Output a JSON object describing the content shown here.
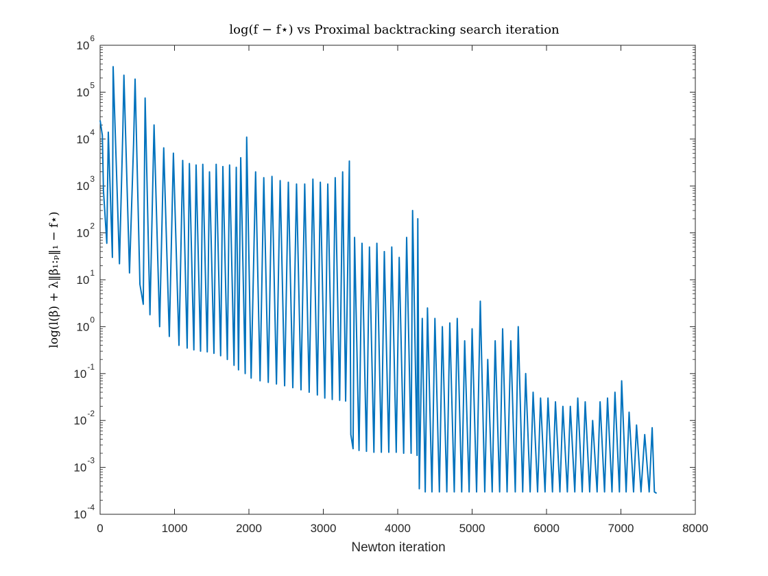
{
  "chart_data": {
    "type": "line",
    "title": "log(f − f⋆) vs Proximal backtracking search iteration",
    "xlabel": "Newton iteration",
    "ylabel": "log(l(β) + λ‖β₁:ₚ‖₁ − f⋆)",
    "xlim": [
      0,
      8000
    ],
    "ylim": [
      0.0001,
      1000000
    ],
    "yscale": "log",
    "grid": false,
    "line_color": "#0072BD",
    "x_ticks": [
      "0",
      "1000",
      "2000",
      "3000",
      "4000",
      "5000",
      "6000",
      "7000",
      "8000"
    ],
    "y_ticks": [
      {
        "base": "10",
        "exp": "-4"
      },
      {
        "base": "10",
        "exp": "-3"
      },
      {
        "base": "10",
        "exp": "-2"
      },
      {
        "base": "10",
        "exp": "-1"
      },
      {
        "base": "10",
        "exp": "0"
      },
      {
        "base": "10",
        "exp": "1"
      },
      {
        "base": "10",
        "exp": "2"
      },
      {
        "base": "10",
        "exp": "3"
      },
      {
        "base": "10",
        "exp": "4"
      },
      {
        "base": "10",
        "exp": "5"
      },
      {
        "base": "10",
        "exp": "6"
      }
    ],
    "series": [
      {
        "points": [
          [
            0,
            25000
          ],
          [
            30,
            12000
          ],
          [
            45,
            800
          ],
          [
            90,
            60
          ],
          [
            110,
            14000
          ],
          [
            165,
            30
          ],
          [
            175,
            350000
          ],
          [
            260,
            22
          ],
          [
            305,
            14000
          ],
          [
            320,
            230000
          ],
          [
            395,
            14
          ],
          [
            450,
            8000
          ],
          [
            470,
            190000
          ],
          [
            535,
            8
          ],
          [
            580,
            3
          ],
          [
            605,
            75000
          ],
          [
            670,
            1.8
          ],
          [
            725,
            20000
          ],
          [
            800,
            1.0
          ],
          [
            855,
            6500
          ],
          [
            930,
            0.62
          ],
          [
            985,
            5000
          ],
          [
            1060,
            0.4
          ],
          [
            1110,
            3500
          ],
          [
            1170,
            0.35
          ],
          [
            1200,
            3000
          ],
          [
            1260,
            0.32
          ],
          [
            1290,
            2800
          ],
          [
            1350,
            0.3
          ],
          [
            1380,
            2900
          ],
          [
            1440,
            0.29
          ],
          [
            1470,
            2000
          ],
          [
            1530,
            0.27
          ],
          [
            1560,
            2900
          ],
          [
            1620,
            0.24
          ],
          [
            1650,
            2600
          ],
          [
            1710,
            0.2
          ],
          [
            1740,
            2800
          ],
          [
            1800,
            0.15
          ],
          [
            1830,
            2500
          ],
          [
            1860,
            0.12
          ],
          [
            1890,
            4000
          ],
          [
            1950,
            0.1
          ],
          [
            1970,
            11000
          ],
          [
            2030,
            0.08
          ],
          [
            2090,
            2000
          ],
          [
            2150,
            0.07
          ],
          [
            2200,
            1500
          ],
          [
            2260,
            0.065
          ],
          [
            2310,
            1600
          ],
          [
            2370,
            0.06
          ],
          [
            2420,
            1300
          ],
          [
            2480,
            0.055
          ],
          [
            2530,
            1200
          ],
          [
            2590,
            0.05
          ],
          [
            2640,
            1100
          ],
          [
            2700,
            0.045
          ],
          [
            2750,
            1100
          ],
          [
            2810,
            0.04
          ],
          [
            2860,
            1400
          ],
          [
            2920,
            0.035
          ],
          [
            2960,
            1200
          ],
          [
            3020,
            0.03
          ],
          [
            3060,
            1100
          ],
          [
            3120,
            0.028
          ],
          [
            3160,
            1500
          ],
          [
            3220,
            0.027
          ],
          [
            3260,
            2000
          ],
          [
            3300,
            0.026
          ],
          [
            3350,
            3400
          ],
          [
            3370,
            0.005
          ],
          [
            3400,
            0.0025
          ],
          [
            3420,
            80
          ],
          [
            3480,
            0.0023
          ],
          [
            3520,
            60
          ],
          [
            3580,
            0.0022
          ],
          [
            3620,
            50
          ],
          [
            3680,
            0.0021
          ],
          [
            3720,
            60
          ],
          [
            3780,
            0.0021
          ],
          [
            3820,
            40
          ],
          [
            3880,
            0.0021
          ],
          [
            3920,
            50
          ],
          [
            3980,
            0.0021
          ],
          [
            4020,
            30
          ],
          [
            4080,
            0.002
          ],
          [
            4120,
            80
          ],
          [
            4180,
            0.002
          ],
          [
            4200,
            300
          ],
          [
            4260,
            0.0018
          ],
          [
            4270,
            200
          ],
          [
            4290,
            0.00035
          ],
          [
            4330,
            1.5
          ],
          [
            4370,
            0.0003
          ],
          [
            4400,
            2.5
          ],
          [
            4460,
            0.0003
          ],
          [
            4500,
            1.5
          ],
          [
            4560,
            0.0003
          ],
          [
            4600,
            1.0
          ],
          [
            4660,
            0.0003
          ],
          [
            4700,
            1.2
          ],
          [
            4760,
            0.0003
          ],
          [
            4800,
            1.5
          ],
          [
            4860,
            0.0003
          ],
          [
            4900,
            0.5
          ],
          [
            4960,
            0.0003
          ],
          [
            5000,
            0.9
          ],
          [
            5060,
            0.0003
          ],
          [
            5110,
            3.5
          ],
          [
            5170,
            0.0003
          ],
          [
            5210,
            0.2
          ],
          [
            5270,
            0.0003
          ],
          [
            5310,
            0.5
          ],
          [
            5370,
            0.0003
          ],
          [
            5410,
            0.9
          ],
          [
            5470,
            0.0003
          ],
          [
            5520,
            0.5
          ],
          [
            5580,
            0.0003
          ],
          [
            5620,
            1.0
          ],
          [
            5680,
            0.0003
          ],
          [
            5720,
            0.1
          ],
          [
            5780,
            0.0003
          ],
          [
            5820,
            0.04
          ],
          [
            5880,
            0.0003
          ],
          [
            5920,
            0.03
          ],
          [
            5980,
            0.0003
          ],
          [
            6020,
            0.03
          ],
          [
            6080,
            0.0003
          ],
          [
            6120,
            0.025
          ],
          [
            6180,
            0.0003
          ],
          [
            6220,
            0.02
          ],
          [
            6280,
            0.0003
          ],
          [
            6320,
            0.02
          ],
          [
            6380,
            0.0003
          ],
          [
            6420,
            0.03
          ],
          [
            6480,
            0.0003
          ],
          [
            6520,
            0.025
          ],
          [
            6580,
            0.0003
          ],
          [
            6620,
            0.01
          ],
          [
            6680,
            0.0003
          ],
          [
            6720,
            0.025
          ],
          [
            6780,
            0.0003
          ],
          [
            6820,
            0.03
          ],
          [
            6880,
            0.0003
          ],
          [
            6920,
            0.04
          ],
          [
            6980,
            0.0003
          ],
          [
            7010,
            0.07
          ],
          [
            7070,
            0.0003
          ],
          [
            7110,
            0.015
          ],
          [
            7170,
            0.0003
          ],
          [
            7210,
            0.008
          ],
          [
            7270,
            0.0003
          ],
          [
            7320,
            0.005
          ],
          [
            7380,
            0.0003
          ],
          [
            7420,
            0.007
          ],
          [
            7450,
            0.0003
          ],
          [
            7480,
            0.00028
          ]
        ]
      }
    ]
  }
}
